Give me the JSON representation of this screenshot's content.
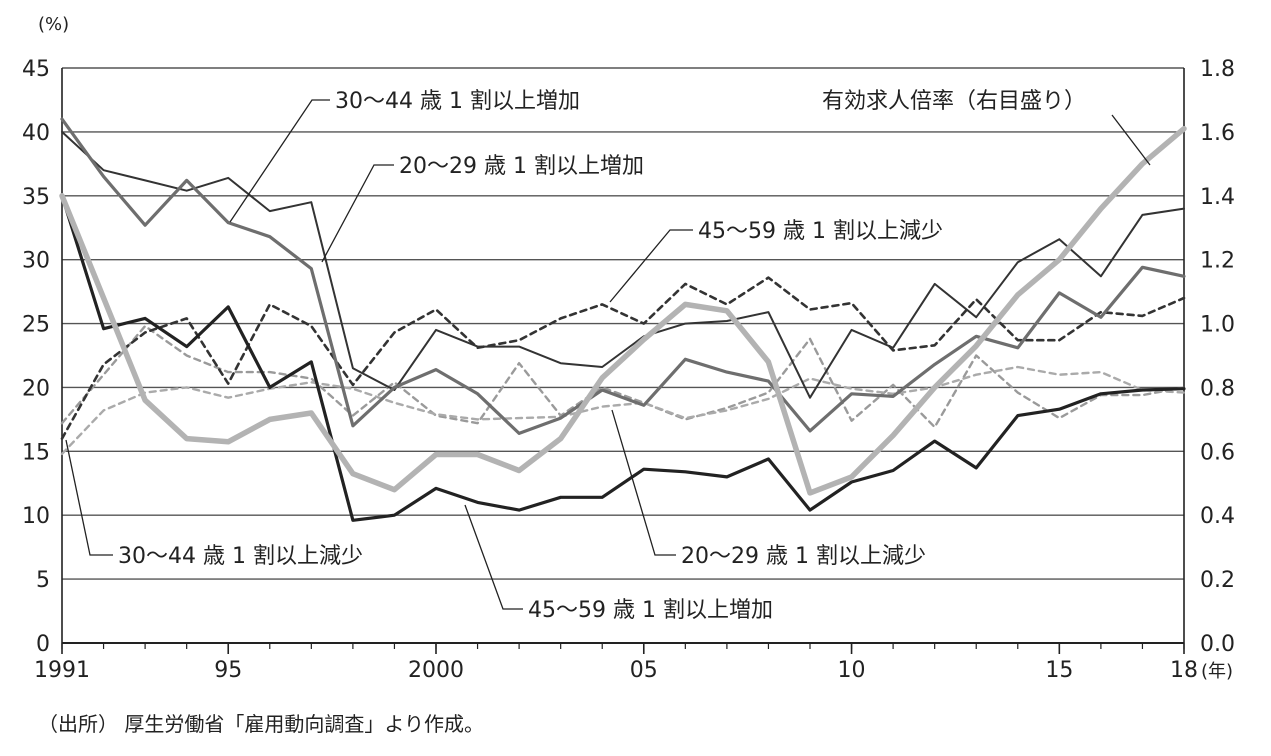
{
  "chart_data": {
    "type": "line",
    "left_unit": "(%)",
    "right_unit": "",
    "x_unit": "(年)",
    "x": [
      1991,
      1992,
      1993,
      1994,
      1995,
      1996,
      1997,
      1998,
      1999,
      2000,
      2001,
      2002,
      2003,
      2004,
      2005,
      2006,
      2007,
      2008,
      2009,
      2010,
      2011,
      2012,
      2013,
      2014,
      2015,
      2016,
      2017,
      2018
    ],
    "x_ticks": [
      {
        "value": 1991,
        "label": "1991"
      },
      {
        "value": 1995,
        "label": "95"
      },
      {
        "value": 2000,
        "label": "2000"
      },
      {
        "value": 2005,
        "label": "05"
      },
      {
        "value": 2010,
        "label": "10"
      },
      {
        "value": 2015,
        "label": "15"
      },
      {
        "value": 2018,
        "label": "18"
      }
    ],
    "y_left_ticks": [
      "0",
      "5",
      "10",
      "15",
      "20",
      "25",
      "30",
      "35",
      "40",
      "45"
    ],
    "y_right_ticks": [
      "0.0",
      "0.2",
      "0.4",
      "0.6",
      "0.8",
      "1.0",
      "1.2",
      "1.4",
      "1.6",
      "1.8"
    ],
    "ylim_left": [
      0,
      45
    ],
    "ylim_right": [
      0,
      1.8
    ],
    "grid": true,
    "series": [
      {
        "name": "30〜44 歳 1 割以上増加",
        "axis": "left",
        "color": "#333333",
        "style": "thin",
        "values": [
          40,
          37,
          36.2,
          35.4,
          36.4,
          33.8,
          34.5,
          21.5,
          19.8,
          24.5,
          23.2,
          23.2,
          21.9,
          21.6,
          24,
          25,
          25.2,
          25.9,
          19.2,
          24.5,
          23.1,
          28.1,
          25.5,
          29.8,
          31.6,
          28.7,
          33.5,
          34
        ]
      },
      {
        "name": "20〜29 歳 1 割以上増加",
        "axis": "left",
        "color": "#6e6e6e",
        "style": "medium",
        "values": [
          41,
          36.5,
          32.7,
          36.2,
          32.9,
          31.8,
          29.3,
          17,
          20,
          21.4,
          19.5,
          16.4,
          17.6,
          19.8,
          18.6,
          22.2,
          21.2,
          20.5,
          16.6,
          19.5,
          19.3,
          21.8,
          24,
          23.1,
          27.4,
          25.5,
          29.4,
          28.7
        ]
      },
      {
        "name": "45〜59 歳 1 割以上減少",
        "axis": "left",
        "color": "#333333",
        "style": "dashed-dark",
        "values": [
          16,
          21.8,
          24.3,
          25.4,
          20.3,
          26.5,
          24.8,
          20.2,
          24.3,
          26.1,
          23.1,
          23.7,
          25.4,
          26.5,
          25,
          28.1,
          26.5,
          28.6,
          26.1,
          26.6,
          22.9,
          23.3,
          26.9,
          23.7,
          23.7,
          25.9,
          25.6,
          27
        ]
      },
      {
        "name": "30〜44 歳 1 割以上減少",
        "axis": "left",
        "color": "#9a9a9a",
        "style": "dashed-light",
        "values": [
          17.2,
          21,
          24.8,
          22.5,
          21.2,
          21.2,
          20.7,
          17.8,
          20.4,
          17.8,
          17.2,
          21.9,
          17.8,
          20,
          18.8,
          17.5,
          18.4,
          19.6,
          23.8,
          17.4,
          20.2,
          16.9,
          22.5,
          19.6,
          17.6,
          19.4,
          19.4,
          20
        ]
      },
      {
        "name": "20〜29 歳 1 割以上減少",
        "axis": "left",
        "color": "#aaaaaa",
        "style": "dashed-light",
        "values": [
          14.8,
          18.2,
          19.6,
          20,
          19.2,
          19.9,
          20.4,
          19.9,
          18.8,
          17.9,
          17.5,
          17.6,
          17.7,
          18.5,
          18.8,
          17.6,
          18.2,
          19.1,
          20.7,
          19.9,
          19.5,
          20,
          21,
          21.6,
          21,
          21.2,
          19.8,
          19.6
        ]
      },
      {
        "name": "45〜59 歳 1 割以上増加",
        "axis": "left",
        "color": "#222222",
        "style": "thick-dark",
        "values": [
          35,
          24.6,
          25.4,
          23.2,
          26.3,
          20,
          22,
          9.6,
          10,
          12.1,
          11,
          10.4,
          11.4,
          11.4,
          13.6,
          13.4,
          13,
          14.4,
          10.4,
          12.6,
          13.5,
          15.8,
          13.7,
          17.8,
          18.3,
          19.5,
          19.8,
          19.9
        ]
      },
      {
        "name": "有効求人倍率（右目盛り）",
        "axis": "right",
        "color": "#b3b3b3",
        "style": "thick-light",
        "values": [
          1.4,
          1.08,
          0.76,
          0.64,
          0.63,
          0.7,
          0.72,
          0.53,
          0.48,
          0.59,
          0.59,
          0.54,
          0.64,
          0.83,
          0.95,
          1.06,
          1.04,
          0.88,
          0.47,
          0.52,
          0.65,
          0.8,
          0.93,
          1.09,
          1.2,
          1.36,
          1.5,
          1.61
        ]
      }
    ],
    "annotations": [
      {
        "text": "30〜44 歳 1 割以上増加",
        "series": 0
      },
      {
        "text": "20〜29 歳 1 割以上増加",
        "series": 1
      },
      {
        "text": "45〜59 歳 1 割以上減少",
        "series": 2
      },
      {
        "text": "有効求人倍率（右目盛り）",
        "series": 6
      },
      {
        "text": "30〜44 歳 1 割以上減少",
        "series": 3
      },
      {
        "text": "20〜29 歳 1 割以上減少",
        "series": 4
      },
      {
        "text": "45〜59 歳 1 割以上増加",
        "series": 5
      }
    ]
  },
  "source": "（出所） 厚生労働省「雇用動向調査」より作成。"
}
